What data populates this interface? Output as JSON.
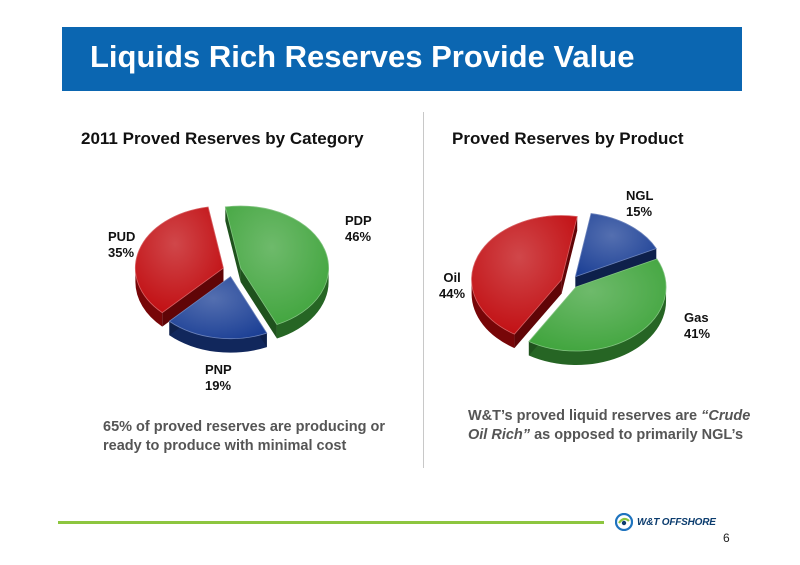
{
  "slide": {
    "title": "Liquids Rich Reserves Provide Value",
    "page_number": "6",
    "logo_text": "W&T OFFSHORE"
  },
  "left_chart": {
    "caption": "65% of proved reserves are producing or ready to produce with minimal cost"
  },
  "right_chart": {
    "caption_before": "W&T’s proved liquid reserves are ",
    "caption_emphasis": "“Crude Oil Rich”",
    "caption_after": " as opposed to primarily NGL’s"
  },
  "chart_data": [
    {
      "type": "pie",
      "title": "2011 Proved Reserves by Category",
      "slices": [
        {
          "label": "PDP",
          "value": 46,
          "value_label": "46%",
          "color": "#3da33a"
        },
        {
          "label": "PNP",
          "value": 19,
          "value_label": "19%",
          "color": "#1b3f95"
        },
        {
          "label": "PUD",
          "value": 35,
          "value_label": "35%",
          "color": "#c0090d"
        }
      ]
    },
    {
      "type": "pie",
      "title": "Proved Reserves by Product",
      "slices": [
        {
          "label": "NGL",
          "value": 15,
          "value_label": "15%",
          "color": "#1b3f95"
        },
        {
          "label": "Gas",
          "value": 41,
          "value_label": "41%",
          "color": "#3da33a"
        },
        {
          "label": "Oil",
          "value": 44,
          "value_label": "44%",
          "color": "#c0090d"
        }
      ]
    }
  ]
}
